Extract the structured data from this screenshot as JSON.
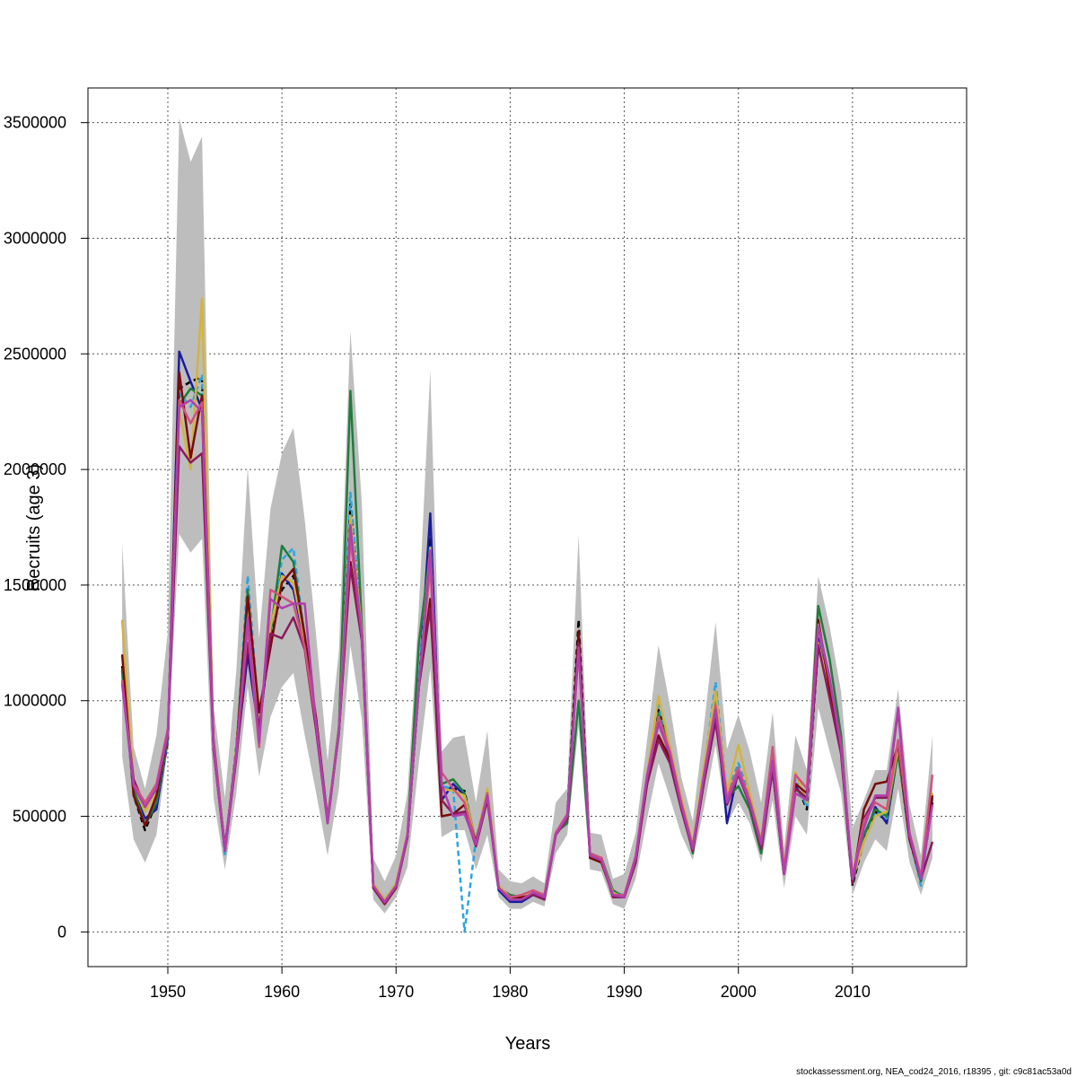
{
  "chart_data": {
    "type": "line",
    "title": "",
    "xlabel": "Years",
    "ylabel": "Recruits (age 3)",
    "xlim": [
      1943,
      2020
    ],
    "ylim": [
      -150000,
      3650000
    ],
    "xticks": [
      1950,
      1960,
      1970,
      1980,
      1990,
      2000,
      2010
    ],
    "yticks": [
      0,
      500000,
      1000000,
      1500000,
      2000000,
      2500000,
      3000000,
      3500000
    ],
    "ytick_labels": [
      "0",
      "500000",
      "1000000",
      "1500000",
      "2000000",
      "2500000",
      "3000000",
      "3500000"
    ],
    "grid": true,
    "legend": "none",
    "years": [
      1946,
      1947,
      1948,
      1949,
      1950,
      1951,
      1952,
      1953,
      1954,
      1955,
      1956,
      1957,
      1958,
      1959,
      1960,
      1961,
      1962,
      1963,
      1964,
      1965,
      1966,
      1967,
      1968,
      1969,
      1970,
      1971,
      1972,
      1973,
      1974,
      1975,
      1976,
      1977,
      1978,
      1979,
      1980,
      1981,
      1982,
      1983,
      1984,
      1985,
      1986,
      1987,
      1988,
      1989,
      1990,
      1991,
      1992,
      1993,
      1994,
      1995,
      1996,
      1997,
      1998,
      1999,
      2000,
      2001,
      2002,
      2003,
      2004,
      2005,
      2006,
      2007,
      2008,
      2009,
      2010,
      2011,
      2012,
      2013,
      2014,
      2015,
      2016,
      2017
    ],
    "band_upper": [
      1680000,
      800000,
      620000,
      850000,
      1300000,
      3520000,
      3330000,
      3440000,
      980000,
      580000,
      1130000,
      2010000,
      1270000,
      1830000,
      2070000,
      2180000,
      1780000,
      1280000,
      740000,
      1220000,
      2600000,
      1860000,
      320000,
      220000,
      330000,
      600000,
      1400000,
      2430000,
      780000,
      840000,
      850000,
      560000,
      870000,
      270000,
      220000,
      210000,
      240000,
      210000,
      560000,
      620000,
      1720000,
      430000,
      420000,
      230000,
      250000,
      430000,
      830000,
      1240000,
      980000,
      670000,
      480000,
      900000,
      1340000,
      790000,
      940000,
      780000,
      560000,
      950000,
      360000,
      850000,
      700000,
      1540000,
      1320000,
      1040000,
      450000,
      570000,
      700000,
      700000,
      1050000,
      550000,
      330000,
      850000
    ],
    "band_lower": [
      760000,
      400000,
      300000,
      420000,
      800000,
      1720000,
      1640000,
      1700000,
      580000,
      270000,
      600000,
      1060000,
      670000,
      930000,
      1060000,
      1120000,
      850000,
      600000,
      330000,
      620000,
      1240000,
      920000,
      140000,
      80000,
      150000,
      280000,
      730000,
      1140000,
      410000,
      440000,
      440000,
      270000,
      420000,
      150000,
      100000,
      100000,
      130000,
      110000,
      340000,
      420000,
      890000,
      270000,
      260000,
      120000,
      100000,
      230000,
      490000,
      730000,
      580000,
      420000,
      310000,
      540000,
      810000,
      470000,
      560000,
      470000,
      300000,
      570000,
      190000,
      500000,
      420000,
      970000,
      780000,
      600000,
      160000,
      300000,
      400000,
      350000,
      620000,
      300000,
      160000,
      320000
    ],
    "series": [
      {
        "color": "#000000",
        "dashed": true,
        "values": [
          1150000,
          590000,
          440000,
          560000,
          820000,
          2350000,
          2380000,
          2400000,
          800000,
          350000,
          800000,
          1400000,
          900000,
          1260000,
          1480000,
          1540000,
          1250000,
          900000,
          480000,
          880000,
          1850000,
          1310000,
          210000,
          130000,
          200000,
          420000,
          1080000,
          1700000,
          620000,
          620000,
          610000,
          370000,
          600000,
          190000,
          140000,
          140000,
          170000,
          150000,
          430000,
          500000,
          1350000,
          320000,
          310000,
          160000,
          150000,
          310000,
          650000,
          960000,
          790000,
          560000,
          370000,
          700000,
          1040000,
          590000,
          710000,
          580000,
          380000,
          730000,
          260000,
          650000,
          530000,
          1240000,
          1030000,
          790000,
          200000,
          400000,
          520000,
          480000,
          780000,
          400000,
          220000,
          560000
        ]
      },
      {
        "color": "#1b1b9e",
        "dashed": false,
        "values": [
          1130000,
          610000,
          490000,
          530000,
          830000,
          2510000,
          2380000,
          2260000,
          790000,
          370000,
          760000,
          1200000,
          860000,
          1320000,
          1550000,
          1480000,
          1250000,
          920000,
          490000,
          860000,
          1780000,
          1300000,
          200000,
          130000,
          200000,
          410000,
          1060000,
          1810000,
          570000,
          640000,
          590000,
          390000,
          590000,
          180000,
          130000,
          130000,
          160000,
          150000,
          420000,
          490000,
          1290000,
          320000,
          310000,
          160000,
          150000,
          320000,
          650000,
          920000,
          760000,
          560000,
          370000,
          680000,
          990000,
          470000,
          700000,
          570000,
          380000,
          700000,
          260000,
          630000,
          560000,
          1270000,
          1020000,
          800000,
          220000,
          400000,
          540000,
          470000,
          780000,
          400000,
          230000,
          580000
        ]
      },
      {
        "color": "#2aa3e0",
        "dashed": true,
        "values": [
          1110000,
          600000,
          470000,
          560000,
          830000,
          2330000,
          2270000,
          2410000,
          820000,
          330000,
          780000,
          1540000,
          920000,
          1290000,
          1610000,
          1660000,
          1270000,
          900000,
          480000,
          870000,
          1900000,
          1310000,
          210000,
          140000,
          210000,
          420000,
          1090000,
          1670000,
          630000,
          620000,
          590,
          400000,
          610000,
          190000,
          140000,
          140000,
          170000,
          150000,
          420000,
          500000,
          1280000,
          320000,
          320000,
          170000,
          160000,
          320000,
          680000,
          980000,
          790000,
          570000,
          370000,
          710000,
          1080000,
          600000,
          730000,
          590000,
          390000,
          740000,
          270000,
          660000,
          540000,
          1250000,
          1040000,
          800000,
          230000,
          400000,
          520000,
          490000,
          790000,
          410000,
          200000,
          580000
        ]
      },
      {
        "color": "#1e7d3c",
        "dashed": false,
        "values": [
          1140000,
          620000,
          460000,
          560000,
          840000,
          2280000,
          2350000,
          2320000,
          800000,
          350000,
          790000,
          1480000,
          890000,
          1290000,
          1670000,
          1600000,
          1280000,
          900000,
          480000,
          890000,
          2340000,
          1330000,
          200000,
          130000,
          200000,
          420000,
          1250000,
          1650000,
          640000,
          660000,
          600000,
          390000,
          600000,
          190000,
          160000,
          150000,
          170000,
          160000,
          430000,
          470000,
          1000000,
          340000,
          320000,
          180000,
          150000,
          300000,
          660000,
          940000,
          800000,
          570000,
          340000,
          700000,
          1020000,
          580000,
          630000,
          530000,
          340000,
          720000,
          250000,
          620000,
          570000,
          1410000,
          1180000,
          850000,
          210000,
          420000,
          530000,
          500000,
          770000,
          420000,
          220000,
          600000
        ]
      },
      {
        "color": "#d2b43c",
        "dashed": false,
        "values": [
          1350000,
          640000,
          520000,
          600000,
          850000,
          2260000,
          2000000,
          2740000,
          800000,
          350000,
          790000,
          1420000,
          900000,
          1320000,
          1540000,
          1510000,
          1260000,
          900000,
          480000,
          880000,
          1800000,
          1300000,
          210000,
          140000,
          210000,
          430000,
          1060000,
          1660000,
          620000,
          610000,
          590000,
          390000,
          620000,
          200000,
          150000,
          150000,
          180000,
          160000,
          420000,
          490000,
          1270000,
          330000,
          310000,
          170000,
          150000,
          320000,
          680000,
          1020000,
          800000,
          580000,
          380000,
          720000,
          1040000,
          600000,
          810000,
          600000,
          400000,
          760000,
          270000,
          690000,
          560000,
          1250000,
          1040000,
          810000,
          230000,
          390000,
          500000,
          520000,
          800000,
          410000,
          230000,
          600000
        ]
      },
      {
        "color": "#7a0a0a",
        "dashed": false,
        "values": [
          1200000,
          590000,
          460000,
          590000,
          850000,
          2420000,
          2050000,
          2320000,
          830000,
          360000,
          780000,
          1450000,
          950000,
          1230000,
          1510000,
          1570000,
          1280000,
          920000,
          480000,
          870000,
          1600000,
          1280000,
          190000,
          120000,
          190000,
          410000,
          1060000,
          1440000,
          500000,
          510000,
          550000,
          390000,
          590000,
          190000,
          140000,
          150000,
          160000,
          150000,
          420000,
          490000,
          1300000,
          320000,
          300000,
          160000,
          150000,
          310000,
          640000,
          850000,
          750000,
          540000,
          360000,
          660000,
          930000,
          560000,
          700000,
          560000,
          370000,
          720000,
          250000,
          640000,
          600000,
          1350000,
          1050000,
          790000,
          220000,
          530000,
          640000,
          650000,
          810000,
          400000,
          230000,
          590000
        ]
      },
      {
        "color": "#8b1a5a",
        "dashed": false,
        "values": [
          1080000,
          660000,
          540000,
          620000,
          850000,
          2100000,
          2030000,
          2070000,
          790000,
          350000,
          750000,
          1250000,
          880000,
          1290000,
          1270000,
          1360000,
          1220000,
          870000,
          470000,
          870000,
          1580000,
          1260000,
          190000,
          120000,
          190000,
          410000,
          1060000,
          1400000,
          570000,
          510000,
          520000,
          370000,
          570000,
          190000,
          140000,
          140000,
          160000,
          140000,
          420000,
          490000,
          1250000,
          330000,
          320000,
          150000,
          150000,
          300000,
          640000,
          830000,
          730000,
          530000,
          350000,
          650000,
          910000,
          550000,
          680000,
          550000,
          360000,
          700000,
          250000,
          620000,
          580000,
          1240000,
          1010000,
          770000,
          210000,
          490000,
          580000,
          580000,
          960000,
          410000,
          230000,
          390000
        ]
      },
      {
        "color": "#d0527e",
        "dashed": false,
        "values": [
          1090000,
          640000,
          560000,
          640000,
          880000,
          2300000,
          2200000,
          2290000,
          820000,
          360000,
          780000,
          1320000,
          800000,
          1480000,
          1450000,
          1420000,
          1230000,
          900000,
          480000,
          870000,
          1700000,
          1290000,
          200000,
          130000,
          200000,
          420000,
          1070000,
          1580000,
          690000,
          620000,
          560000,
          380000,
          600000,
          190000,
          150000,
          160000,
          180000,
          160000,
          430000,
          510000,
          1220000,
          340000,
          320000,
          160000,
          160000,
          330000,
          680000,
          930000,
          780000,
          560000,
          370000,
          690000,
          980000,
          580000,
          710000,
          570000,
          390000,
          800000,
          270000,
          680000,
          620000,
          1330000,
          1090000,
          810000,
          240000,
          480000,
          560000,
          530000,
          830000,
          430000,
          240000,
          680000
        ]
      },
      {
        "color": "#b03fae",
        "dashed": false,
        "values": [
          1070000,
          630000,
          540000,
          620000,
          860000,
          2270000,
          2300000,
          2250000,
          800000,
          350000,
          770000,
          1360000,
          820000,
          1440000,
          1400000,
          1420000,
          1420000,
          890000,
          470000,
          870000,
          1760000,
          1280000,
          200000,
          130000,
          200000,
          420000,
          1060000,
          1650000,
          640000,
          500000,
          510000,
          380000,
          590000,
          190000,
          140000,
          140000,
          170000,
          150000,
          420000,
          500000,
          1230000,
          330000,
          310000,
          160000,
          150000,
          320000,
          670000,
          900000,
          770000,
          550000,
          360000,
          680000,
          960000,
          560000,
          690000,
          560000,
          380000,
          740000,
          250000,
          600000,
          570000,
          1320000,
          1100000,
          800000,
          230000,
          450000,
          590000,
          590000,
          970000,
          420000,
          230000,
          550000
        ]
      }
    ],
    "footer": "stockassessment.org, NEA_cod24_2016, r18395 , git: c9c81ac53a0d"
  }
}
